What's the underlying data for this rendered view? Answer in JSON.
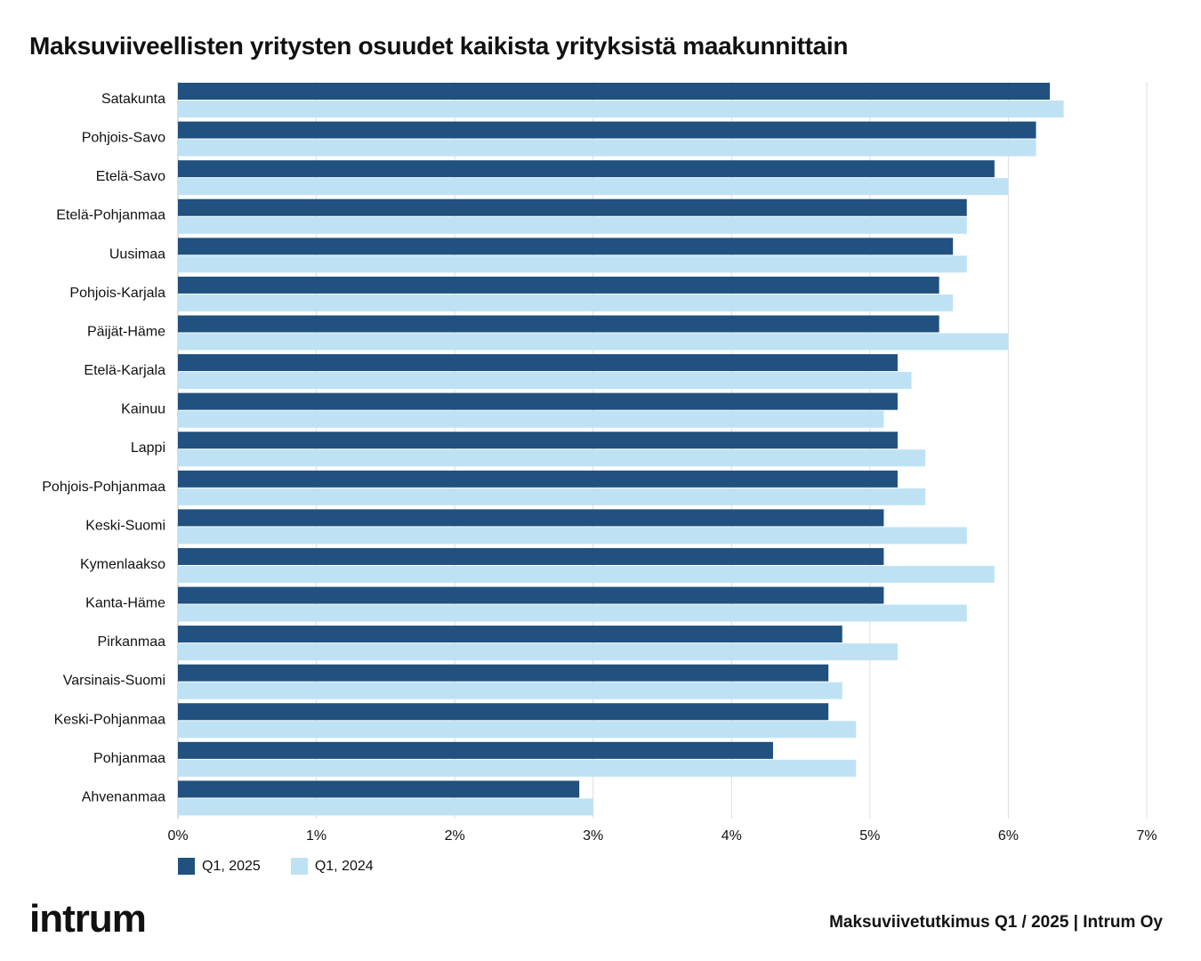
{
  "brand": "intrum",
  "footer": "Maksuviivetutkimus Q1 / 2025 | Intrum Oy",
  "chart_data": {
    "type": "bar",
    "orientation": "horizontal",
    "title": "Maksuviiveellisten yritysten osuudet kaikista yrityksistä maakunnittain",
    "xlabel": "",
    "ylabel": "",
    "xlim": [
      0,
      7
    ],
    "xticks": [
      "0%",
      "1%",
      "2%",
      "3%",
      "4%",
      "5%",
      "6%",
      "7%"
    ],
    "grid": true,
    "legend_position": "bottom-left",
    "categories": [
      "Satakunta",
      "Pohjois-Savo",
      "Etelä-Savo",
      "Etelä-Pohjanmaa",
      "Uusimaa",
      "Pohjois-Karjala",
      "Päijät-Häme",
      "Etelä-Karjala",
      "Kainuu",
      "Lappi",
      "Pohjois-Pohjanmaa",
      "Keski-Suomi",
      "Kymenlaakso",
      "Kanta-Häme",
      "Pirkanmaa",
      "Varsinais-Suomi",
      "Keski-Pohjanmaa",
      "Pohjanmaa",
      "Ahvenanmaa"
    ],
    "series": [
      {
        "name": "Q1, 2025",
        "color": "#20517f",
        "values": [
          6.3,
          6.2,
          5.9,
          5.7,
          5.6,
          5.5,
          5.5,
          5.2,
          5.2,
          5.2,
          5.2,
          5.1,
          5.1,
          5.1,
          4.8,
          4.7,
          4.7,
          4.3,
          2.9
        ]
      },
      {
        "name": "Q1, 2024",
        "color": "#bee2f4",
        "values": [
          6.4,
          6.2,
          6.0,
          5.7,
          5.7,
          5.6,
          6.0,
          5.3,
          5.1,
          5.4,
          5.4,
          5.7,
          5.9,
          5.7,
          5.2,
          4.8,
          4.9,
          4.9,
          3.0
        ]
      }
    ]
  }
}
